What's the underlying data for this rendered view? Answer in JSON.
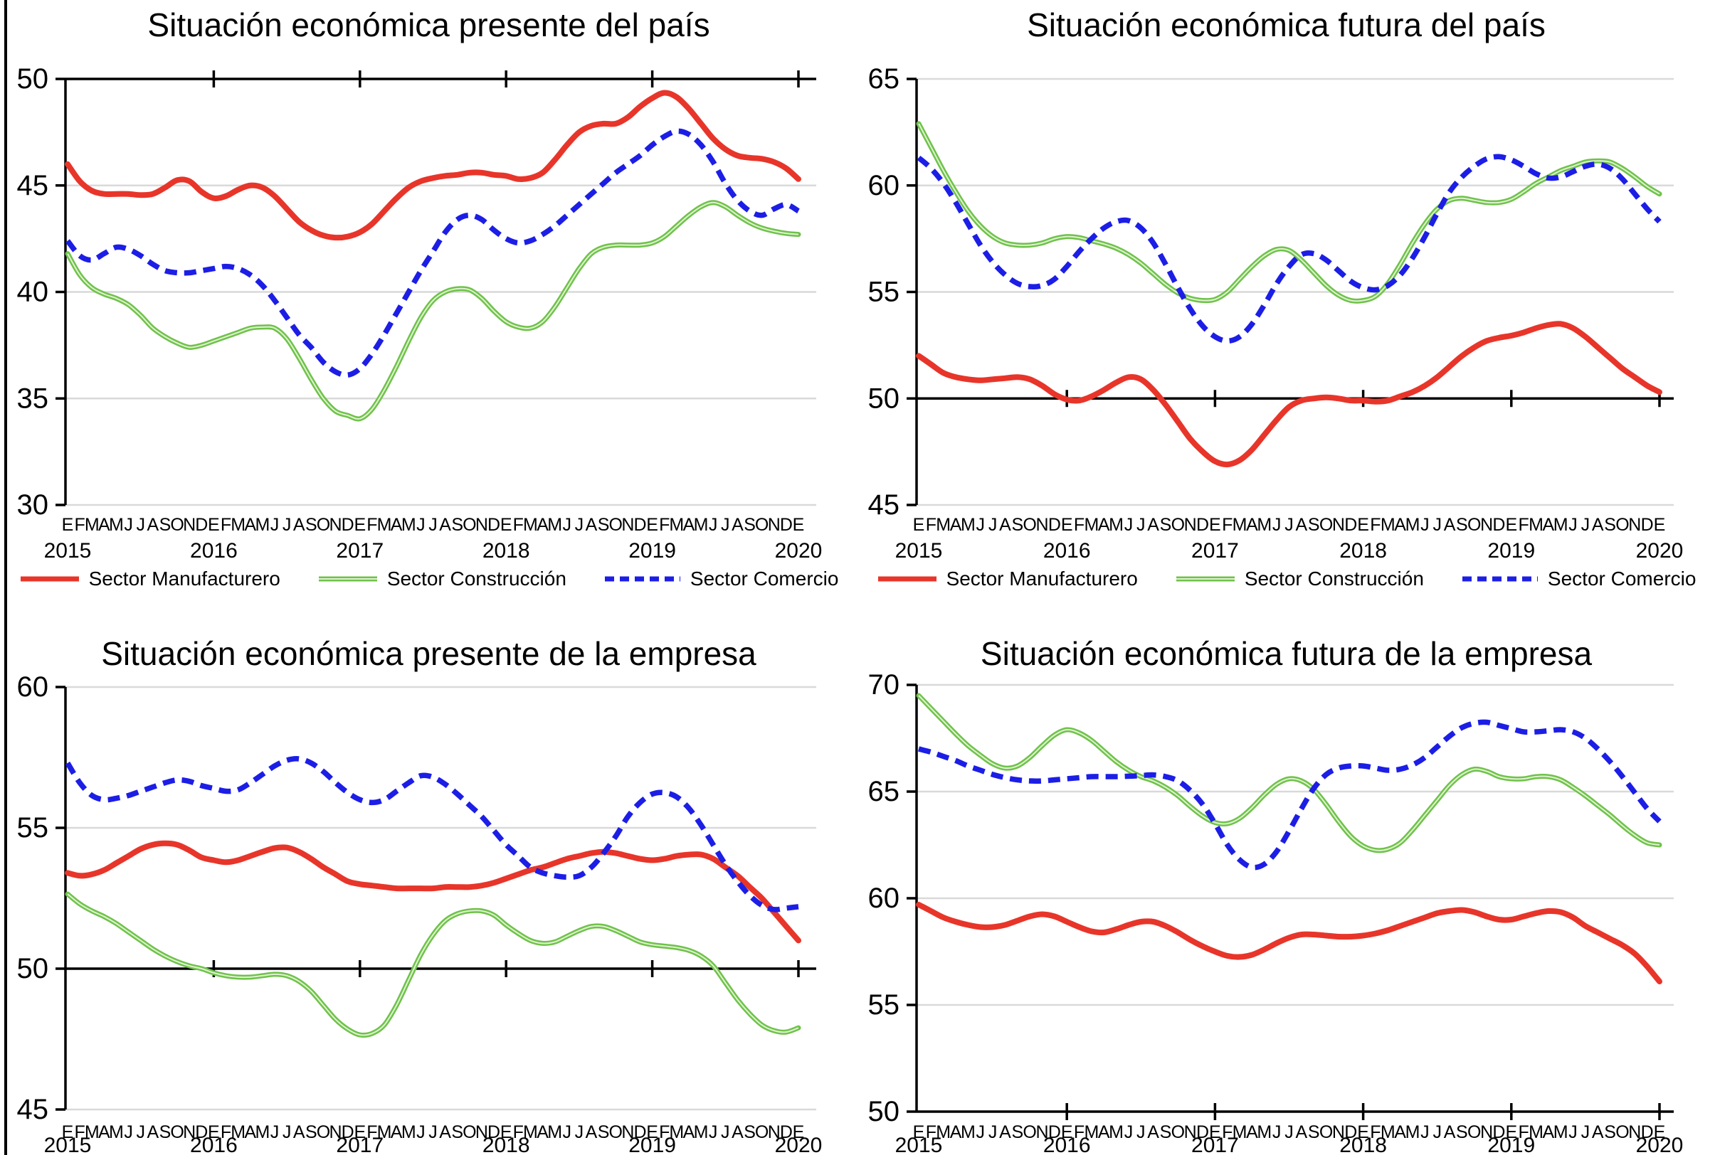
{
  "page": {
    "background": "#ffffff",
    "border_color": "#000000"
  },
  "colors": {
    "manufacturero": "#e8352a",
    "construccion": "#6fc24a",
    "construccion_highlight": "#dff2d1",
    "comercio": "#1c1ee6",
    "gridline": "#d9d9d9",
    "axis": "#000000"
  },
  "x_axis": {
    "month_letters": [
      "E",
      "F",
      "M",
      "A",
      "M",
      "J",
      "J",
      "A",
      "S",
      "O",
      "N",
      "D"
    ],
    "final_month": "E",
    "years": [
      "2015",
      "2016",
      "2017",
      "2018",
      "2019",
      "2020"
    ]
  },
  "legend": {
    "items": [
      {
        "key": "manufacturero",
        "label": "Sector Manufacturero",
        "style": "solid"
      },
      {
        "key": "construccion",
        "label": "Sector Construcción",
        "style": "solid"
      },
      {
        "key": "comercio",
        "label": "Sector Comercio",
        "style": "dashed"
      }
    ]
  },
  "chart_data": [
    {
      "type": "line",
      "title": "Situación económica presente del país",
      "ylim": [
        30,
        50
      ],
      "yticks": [
        50,
        45,
        40,
        35,
        30
      ],
      "ref_value": 50,
      "grid": true,
      "legend_position": "bottom",
      "x_start": "2015-01",
      "x_end": "2020-01",
      "series": [
        {
          "key": "manufacturero",
          "name": "Sector Manufacturero",
          "values": [
            46.0,
            45.2,
            44.75,
            44.6,
            44.6,
            44.6,
            44.55,
            44.6,
            44.9,
            45.25,
            45.2,
            44.7,
            44.4,
            44.5,
            44.8,
            45.0,
            44.9,
            44.5,
            43.9,
            43.3,
            42.9,
            42.65,
            42.55,
            42.6,
            42.8,
            43.2,
            43.8,
            44.4,
            44.9,
            45.2,
            45.35,
            45.45,
            45.5,
            45.6,
            45.6,
            45.5,
            45.45,
            45.3,
            45.35,
            45.6,
            46.2,
            46.9,
            47.5,
            47.8,
            47.9,
            47.9,
            48.2,
            48.7,
            49.1,
            49.35,
            49.15,
            48.6,
            47.9,
            47.2,
            46.7,
            46.4,
            46.3,
            46.25,
            46.1,
            45.8,
            45.3
          ]
        },
        {
          "key": "construccion",
          "name": "Sector Construcción",
          "values": [
            41.8,
            40.8,
            40.2,
            39.9,
            39.7,
            39.4,
            38.9,
            38.3,
            37.9,
            37.6,
            37.4,
            37.5,
            37.7,
            37.9,
            38.1,
            38.3,
            38.35,
            38.3,
            37.8,
            36.9,
            35.9,
            35.0,
            34.4,
            34.2,
            34.05,
            34.5,
            35.4,
            36.5,
            37.7,
            38.8,
            39.6,
            40.0,
            40.15,
            40.1,
            39.7,
            39.1,
            38.6,
            38.35,
            38.3,
            38.6,
            39.3,
            40.2,
            41.1,
            41.8,
            42.1,
            42.2,
            42.2,
            42.2,
            42.3,
            42.6,
            43.1,
            43.6,
            44.0,
            44.2,
            44.0,
            43.6,
            43.25,
            43.0,
            42.85,
            42.75,
            42.7
          ]
        },
        {
          "key": "comercio",
          "name": "Sector Comercio",
          "values": [
            42.4,
            41.7,
            41.5,
            41.8,
            42.1,
            42.0,
            41.7,
            41.3,
            41.0,
            40.9,
            40.9,
            41.0,
            41.1,
            41.2,
            41.1,
            40.8,
            40.3,
            39.6,
            38.8,
            38.0,
            37.4,
            36.7,
            36.25,
            36.1,
            36.4,
            37.1,
            38.0,
            39.0,
            40.0,
            41.0,
            41.9,
            42.8,
            43.4,
            43.6,
            43.4,
            42.9,
            42.5,
            42.3,
            42.4,
            42.7,
            43.1,
            43.6,
            44.1,
            44.6,
            45.1,
            45.6,
            46.0,
            46.4,
            46.9,
            47.3,
            47.55,
            47.4,
            46.9,
            46.1,
            45.1,
            44.3,
            43.8,
            43.6,
            43.9,
            44.1,
            43.8
          ]
        }
      ]
    },
    {
      "type": "line",
      "title": "Situación económica futura del país",
      "ylim": [
        45,
        65
      ],
      "yticks": [
        65,
        60,
        55,
        50,
        45
      ],
      "ref_value": 50,
      "grid": true,
      "legend_position": "bottom",
      "x_start": "2015-01",
      "x_end": "2020-01",
      "series": [
        {
          "key": "manufacturero",
          "name": "Sector Manufacturero",
          "values": [
            52.0,
            51.6,
            51.2,
            51.0,
            50.9,
            50.85,
            50.9,
            50.95,
            51.0,
            50.9,
            50.6,
            50.2,
            49.95,
            49.9,
            50.1,
            50.4,
            50.75,
            51.0,
            50.9,
            50.4,
            49.7,
            48.9,
            48.1,
            47.5,
            47.05,
            46.9,
            47.1,
            47.6,
            48.3,
            49.0,
            49.6,
            49.9,
            50.0,
            50.05,
            50.0,
            49.9,
            49.9,
            49.85,
            49.9,
            50.1,
            50.3,
            50.6,
            51.0,
            51.5,
            52.0,
            52.4,
            52.7,
            52.85,
            52.95,
            53.1,
            53.3,
            53.45,
            53.5,
            53.3,
            52.9,
            52.4,
            51.9,
            51.4,
            51.0,
            50.6,
            50.3
          ]
        },
        {
          "key": "construccion",
          "name": "Sector Construcción",
          "values": [
            62.9,
            61.8,
            60.7,
            59.7,
            58.8,
            58.1,
            57.6,
            57.3,
            57.2,
            57.2,
            57.3,
            57.5,
            57.6,
            57.55,
            57.4,
            57.25,
            57.05,
            56.75,
            56.35,
            55.85,
            55.35,
            54.95,
            54.7,
            54.6,
            54.65,
            55.0,
            55.6,
            56.2,
            56.7,
            57.0,
            56.95,
            56.5,
            55.9,
            55.3,
            54.85,
            54.6,
            54.6,
            54.8,
            55.4,
            56.3,
            57.3,
            58.2,
            58.9,
            59.3,
            59.4,
            59.3,
            59.2,
            59.2,
            59.35,
            59.7,
            60.1,
            60.4,
            60.7,
            60.9,
            61.1,
            61.15,
            61.1,
            60.8,
            60.4,
            59.95,
            59.6
          ]
        },
        {
          "key": "comercio",
          "name": "Sector Comercio",
          "values": [
            61.3,
            60.8,
            60.1,
            59.2,
            58.2,
            57.2,
            56.4,
            55.8,
            55.4,
            55.25,
            55.3,
            55.6,
            56.2,
            56.9,
            57.5,
            58.0,
            58.3,
            58.35,
            58.0,
            57.3,
            56.3,
            55.2,
            54.2,
            53.4,
            52.9,
            52.7,
            52.9,
            53.5,
            54.4,
            55.4,
            56.2,
            56.75,
            56.8,
            56.5,
            56.0,
            55.5,
            55.2,
            55.1,
            55.3,
            55.8,
            56.6,
            57.6,
            58.7,
            59.7,
            60.4,
            60.9,
            61.25,
            61.35,
            61.2,
            60.9,
            60.55,
            60.35,
            60.4,
            60.65,
            60.9,
            61.0,
            60.8,
            60.3,
            59.6,
            58.9,
            58.3
          ]
        }
      ]
    },
    {
      "type": "line",
      "title": "Situación económica presente de la empresa",
      "ylim": [
        45,
        60
      ],
      "yticks": [
        60,
        55,
        50,
        45
      ],
      "ref_value": 50,
      "grid": true,
      "legend_position": "none",
      "x_start": "2015-01",
      "x_end": "2020-01",
      "series": [
        {
          "key": "manufacturero",
          "name": "Sector Manufacturero",
          "values": [
            53.4,
            53.3,
            53.35,
            53.5,
            53.75,
            54.0,
            54.25,
            54.4,
            54.45,
            54.4,
            54.2,
            53.95,
            53.85,
            53.78,
            53.85,
            54.0,
            54.15,
            54.28,
            54.3,
            54.15,
            53.9,
            53.6,
            53.35,
            53.1,
            53.0,
            52.95,
            52.9,
            52.85,
            52.85,
            52.85,
            52.85,
            52.9,
            52.9,
            52.9,
            52.95,
            53.05,
            53.2,
            53.35,
            53.5,
            53.6,
            53.75,
            53.9,
            54.0,
            54.1,
            54.15,
            54.1,
            54.0,
            53.9,
            53.85,
            53.9,
            54.0,
            54.05,
            54.05,
            53.9,
            53.6,
            53.3,
            52.9,
            52.5,
            52.0,
            51.5,
            51.0
          ]
        },
        {
          "key": "construccion",
          "name": "Sector Construcción",
          "values": [
            52.65,
            52.3,
            52.05,
            51.85,
            51.6,
            51.3,
            51.0,
            50.7,
            50.45,
            50.25,
            50.1,
            50.0,
            49.85,
            49.75,
            49.7,
            49.7,
            49.75,
            49.8,
            49.75,
            49.55,
            49.2,
            48.7,
            48.2,
            47.85,
            47.65,
            47.7,
            48.0,
            48.7,
            49.6,
            50.5,
            51.2,
            51.7,
            51.95,
            52.05,
            52.05,
            51.9,
            51.55,
            51.25,
            51.0,
            50.9,
            50.95,
            51.15,
            51.35,
            51.5,
            51.5,
            51.35,
            51.15,
            50.95,
            50.85,
            50.8,
            50.75,
            50.65,
            50.45,
            50.1,
            49.5,
            48.9,
            48.4,
            48.0,
            47.8,
            47.75,
            47.9
          ]
        },
        {
          "key": "comercio",
          "name": "Sector Comercio",
          "values": [
            57.3,
            56.6,
            56.15,
            56.0,
            56.05,
            56.15,
            56.3,
            56.45,
            56.6,
            56.7,
            56.65,
            56.5,
            56.4,
            56.3,
            56.35,
            56.6,
            56.9,
            57.2,
            57.4,
            57.45,
            57.3,
            57.0,
            56.6,
            56.25,
            56.0,
            55.9,
            56.0,
            56.3,
            56.6,
            56.85,
            56.8,
            56.55,
            56.2,
            55.8,
            55.4,
            54.9,
            54.4,
            54.0,
            53.6,
            53.4,
            53.3,
            53.25,
            53.3,
            53.6,
            54.1,
            54.7,
            55.4,
            55.9,
            56.2,
            56.25,
            56.1,
            55.7,
            55.1,
            54.4,
            53.7,
            53.1,
            52.6,
            52.25,
            52.1,
            52.15,
            52.2
          ]
        }
      ]
    },
    {
      "type": "line",
      "title": "Situación económica futura de la empresa",
      "ylim": [
        50,
        70
      ],
      "yticks": [
        70,
        65,
        60,
        55,
        50
      ],
      "ref_value": 50,
      "grid": true,
      "legend_position": "none",
      "x_start": "2015-01",
      "x_end": "2020-01",
      "series": [
        {
          "key": "manufacturero",
          "name": "Sector Manufacturero",
          "values": [
            59.7,
            59.4,
            59.1,
            58.9,
            58.75,
            58.65,
            58.65,
            58.75,
            58.95,
            59.15,
            59.25,
            59.15,
            58.9,
            58.65,
            58.45,
            58.4,
            58.55,
            58.75,
            58.9,
            58.9,
            58.7,
            58.4,
            58.05,
            57.75,
            57.5,
            57.3,
            57.25,
            57.35,
            57.6,
            57.9,
            58.15,
            58.3,
            58.3,
            58.25,
            58.2,
            58.2,
            58.25,
            58.35,
            58.5,
            58.7,
            58.9,
            59.1,
            59.3,
            59.4,
            59.45,
            59.35,
            59.15,
            59.0,
            59.0,
            59.15,
            59.3,
            59.4,
            59.35,
            59.1,
            58.7,
            58.4,
            58.1,
            57.8,
            57.4,
            56.8,
            56.1
          ]
        },
        {
          "key": "construccion",
          "name": "Sector Construcción",
          "values": [
            69.5,
            68.9,
            68.3,
            67.7,
            67.15,
            66.7,
            66.3,
            66.1,
            66.2,
            66.6,
            67.15,
            67.65,
            67.9,
            67.75,
            67.4,
            66.9,
            66.4,
            66.0,
            65.7,
            65.5,
            65.2,
            64.8,
            64.3,
            63.85,
            63.55,
            63.5,
            63.75,
            64.25,
            64.85,
            65.35,
            65.6,
            65.5,
            65.1,
            64.4,
            63.6,
            62.9,
            62.45,
            62.25,
            62.3,
            62.6,
            63.2,
            63.9,
            64.6,
            65.3,
            65.8,
            66.05,
            65.95,
            65.7,
            65.6,
            65.6,
            65.7,
            65.7,
            65.55,
            65.2,
            64.8,
            64.35,
            63.9,
            63.4,
            62.95,
            62.6,
            62.5
          ]
        },
        {
          "key": "comercio",
          "name": "Sector Comercio",
          "values": [
            67.0,
            66.85,
            66.65,
            66.45,
            66.2,
            66.0,
            65.8,
            65.65,
            65.55,
            65.5,
            65.5,
            65.55,
            65.6,
            65.65,
            65.7,
            65.7,
            65.7,
            65.72,
            65.75,
            65.78,
            65.7,
            65.5,
            65.05,
            64.4,
            63.5,
            62.5,
            61.8,
            61.45,
            61.6,
            62.2,
            63.15,
            64.2,
            65.15,
            65.8,
            66.1,
            66.2,
            66.2,
            66.1,
            66.0,
            66.05,
            66.25,
            66.6,
            67.1,
            67.6,
            68.0,
            68.2,
            68.25,
            68.1,
            67.95,
            67.8,
            67.8,
            67.85,
            67.9,
            67.8,
            67.5,
            67.0,
            66.4,
            65.7,
            64.95,
            64.2,
            63.6
          ]
        }
      ]
    }
  ]
}
